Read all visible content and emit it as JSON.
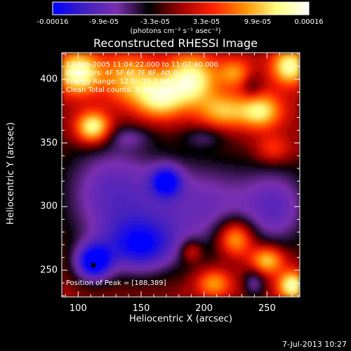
{
  "colorbar": {
    "ticks": [
      "-0.00016",
      "-9.9e-05",
      "-3.3e-05",
      "3.3e-05",
      "9.9e-05",
      "0.00016"
    ],
    "units": "(photons cm⁻² s⁻¹ asec⁻²)",
    "range": [
      -0.00016,
      0.00016
    ]
  },
  "title": "Reconstructed RHESSI Image",
  "annotations": {
    "time_range": "12-Feb-2005 11:04:22.000 to 11:07:40.000",
    "detectors": "Detectors: 4F 5F 6F 7F 8F, Att 0",
    "energy_range": "Energy Range: 12.0 - 25.0 keV",
    "clean": "Clean     Total counts: 3.36E+03",
    "peak": "Position of Peak = [188,389]"
  },
  "footer_date": "7-Jul-2013 10:27",
  "chart_data": {
    "type": "heatmap",
    "title": "Reconstructed RHESSI Image",
    "xlabel": "Heliocentric X (arcsec)",
    "ylabel": "Heliocentric Y (arcsec)",
    "xlim": [
      87,
      276
    ],
    "ylim": [
      229,
      421
    ],
    "xticks": [
      100,
      150,
      200,
      250
    ],
    "yticks": [
      250,
      300,
      350,
      400
    ],
    "peak_position": [
      188,
      389
    ],
    "marker_position": [
      112,
      254
    ],
    "colormap": [
      "#0000ff",
      "#4020c0",
      "#7b2fb0",
      "#000000",
      "#a00000",
      "#ff2000",
      "#ff9000",
      "#ffff80",
      "#ffffff"
    ],
    "blobs": [
      {
        "x": 100,
        "y": 405,
        "v": 0.9,
        "sx": 12,
        "sy": 12
      },
      {
        "x": 112,
        "y": 362,
        "v": 1.0,
        "sx": 10,
        "sy": 9
      },
      {
        "x": 140,
        "y": 400,
        "v": 0.6,
        "sx": 16,
        "sy": 15
      },
      {
        "x": 165,
        "y": 385,
        "v": 0.75,
        "sx": 14,
        "sy": 12
      },
      {
        "x": 190,
        "y": 400,
        "v": 0.85,
        "sx": 14,
        "sy": 14
      },
      {
        "x": 215,
        "y": 375,
        "v": 0.6,
        "sx": 14,
        "sy": 10
      },
      {
        "x": 245,
        "y": 375,
        "v": 0.75,
        "sx": 12,
        "sy": 10
      },
      {
        "x": 268,
        "y": 410,
        "v": 0.85,
        "sx": 10,
        "sy": 10
      },
      {
        "x": 225,
        "y": 405,
        "v": 0.5,
        "sx": 10,
        "sy": 8
      },
      {
        "x": 255,
        "y": 345,
        "v": 0.4,
        "sx": 10,
        "sy": 8
      },
      {
        "x": 140,
        "y": 355,
        "v": -0.25,
        "sx": 14,
        "sy": 6
      },
      {
        "x": 200,
        "y": 355,
        "v": -0.3,
        "sx": 12,
        "sy": 6
      },
      {
        "x": 238,
        "y": 395,
        "v": -0.3,
        "sx": 6,
        "sy": 8
      },
      {
        "x": 125,
        "y": 310,
        "v": -0.6,
        "sx": 30,
        "sy": 35
      },
      {
        "x": 200,
        "y": 300,
        "v": -0.55,
        "sx": 35,
        "sy": 30
      },
      {
        "x": 260,
        "y": 300,
        "v": -0.5,
        "sx": 20,
        "sy": 25
      },
      {
        "x": 112,
        "y": 256,
        "v": -1.0,
        "sx": 10,
        "sy": 10
      },
      {
        "x": 150,
        "y": 268,
        "v": -0.7,
        "sx": 20,
        "sy": 15
      },
      {
        "x": 170,
        "y": 320,
        "v": -0.75,
        "sx": 8,
        "sy": 8
      },
      {
        "x": 225,
        "y": 275,
        "v": 0.85,
        "sx": 10,
        "sy": 10
      },
      {
        "x": 250,
        "y": 258,
        "v": 0.8,
        "sx": 10,
        "sy": 8
      },
      {
        "x": 270,
        "y": 238,
        "v": 0.9,
        "sx": 8,
        "sy": 8
      },
      {
        "x": 208,
        "y": 240,
        "v": 0.6,
        "sx": 10,
        "sy": 8
      },
      {
        "x": 190,
        "y": 265,
        "v": 0.45,
        "sx": 6,
        "sy": 6
      },
      {
        "x": 240,
        "y": 240,
        "v": -0.45,
        "sx": 6,
        "sy": 8
      }
    ]
  }
}
